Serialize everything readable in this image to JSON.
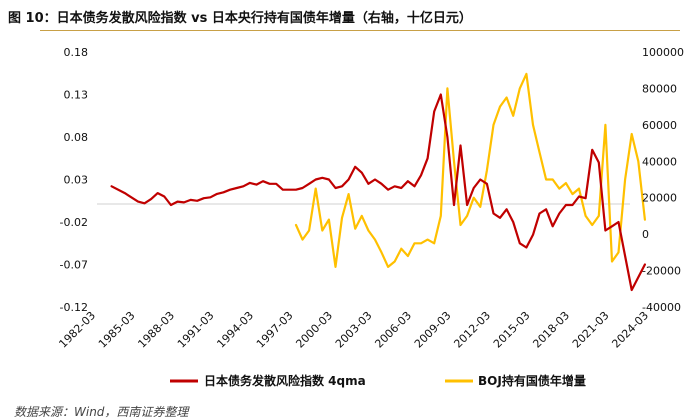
{
  "header": {
    "title": "图 10：日本债务发散风险指数 vs 日本央行持有国债年增量（右轴，十亿日元）",
    "source": "数据来源：Wind，西南证券整理"
  },
  "chart_data": {
    "type": "line",
    "title": "图 10：日本债务发散风险指数 vs 日本央行持有国债年增量（右轴，十亿日元）",
    "xlabel": "",
    "ylabel": "",
    "x_tick_labels": [
      "1982-03",
      "1985-03",
      "1988-03",
      "1991-03",
      "1994-03",
      "1997-03",
      "2000-03",
      "2003-03",
      "2006-03",
      "2009-03",
      "2012-03",
      "2015-03",
      "2018-03",
      "2021-03",
      "2024-03"
    ],
    "x_range": [
      1982.25,
      2025.5
    ],
    "ylim_left": [
      -0.12,
      0.18
    ],
    "yticks_left": [
      "0.18",
      "0.13",
      "0.08",
      "0.03",
      "-0.02",
      "-0.07",
      "-0.12"
    ],
    "ylim_right": [
      -40000,
      100000
    ],
    "yticks_right": [
      "100000",
      "80000",
      "60000",
      "40000",
      "20000",
      "0",
      "-20000",
      "-40000"
    ],
    "legend_position": "bottom",
    "grid": false,
    "colors": {
      "series1": "#c00000",
      "series2": "#ffc000",
      "rule": "#c8a046"
    },
    "series": [
      {
        "name": "日本债务发散风险指数 4qma",
        "axis": "left",
        "x": [
          1984.5,
          1985.5,
          1986.5,
          1987.0,
          1987.5,
          1988.0,
          1988.5,
          1989.0,
          1989.5,
          1990.0,
          1990.5,
          1991.0,
          1991.5,
          1992.0,
          1992.5,
          1993.0,
          1993.5,
          1994.0,
          1994.5,
          1995.0,
          1995.5,
          1996.0,
          1996.5,
          1997.0,
          1997.5,
          1998.0,
          1998.5,
          1999.0,
          1999.5,
          2000.0,
          2000.5,
          2001.0,
          2001.5,
          2002.0,
          2002.5,
          2003.0,
          2003.5,
          2004.0,
          2004.5,
          2005.0,
          2005.5,
          2006.0,
          2006.5,
          2007.0,
          2007.5,
          2008.0,
          2008.5,
          2009.0,
          2009.5,
          2010.0,
          2010.5,
          2011.0,
          2011.5,
          2012.0,
          2012.5,
          2013.0,
          2013.5,
          2014.0,
          2014.5,
          2015.0,
          2015.5,
          2016.0,
          2016.5,
          2017.0,
          2017.5,
          2018.0,
          2018.5,
          2019.0,
          2019.5,
          2020.0,
          2020.5,
          2021.0,
          2021.5,
          2022.0,
          2022.5,
          2023.0,
          2023.5,
          2024.0,
          2024.5,
          2025.0
        ],
        "values": [
          0.022,
          0.014,
          0.004,
          0.002,
          0.007,
          0.014,
          0.01,
          0.0,
          0.004,
          0.003,
          0.006,
          0.005,
          0.008,
          0.009,
          0.013,
          0.015,
          0.018,
          0.02,
          0.022,
          0.026,
          0.024,
          0.028,
          0.025,
          0.025,
          0.018,
          0.018,
          0.018,
          0.02,
          0.025,
          0.03,
          0.032,
          0.03,
          0.02,
          0.022,
          0.03,
          0.045,
          0.038,
          0.025,
          0.03,
          0.025,
          0.018,
          0.022,
          0.02,
          0.028,
          0.022,
          0.035,
          0.055,
          0.11,
          0.13,
          0.08,
          0.0,
          0.07,
          0.0,
          0.02,
          0.03,
          0.025,
          -0.01,
          -0.015,
          -0.005,
          -0.02,
          -0.045,
          -0.05,
          -0.035,
          -0.01,
          -0.005,
          -0.025,
          -0.01,
          0.0,
          0.0,
          0.01,
          0.008,
          0.065,
          0.05,
          -0.03,
          -0.025,
          -0.02,
          -0.06,
          -0.1,
          -0.085,
          -0.07
        ]
      },
      {
        "name": "BOJ持有国债年增量",
        "axis": "right",
        "x": [
          1998.5,
          1999.0,
          1999.5,
          2000.0,
          2000.5,
          2001.0,
          2001.5,
          2002.0,
          2002.5,
          2003.0,
          2003.5,
          2004.0,
          2004.5,
          2005.0,
          2005.5,
          2006.0,
          2006.5,
          2007.0,
          2007.5,
          2008.0,
          2008.5,
          2009.0,
          2009.5,
          2010.0,
          2010.5,
          2011.0,
          2011.5,
          2012.0,
          2012.5,
          2013.0,
          2013.5,
          2014.0,
          2014.5,
          2015.0,
          2015.5,
          2016.0,
          2016.5,
          2017.0,
          2017.5,
          2018.0,
          2018.5,
          2019.0,
          2019.5,
          2020.0,
          2020.5,
          2021.0,
          2021.5,
          2022.0,
          2022.5,
          2023.0,
          2023.5,
          2024.0,
          2024.5,
          2025.0
        ],
        "values": [
          5000,
          -3000,
          2000,
          25000,
          2000,
          8000,
          -18000,
          9000,
          22000,
          3000,
          10000,
          2000,
          -3000,
          -10000,
          -18000,
          -15000,
          -8000,
          -12000,
          -5000,
          -5000,
          -3000,
          -5000,
          10000,
          80000,
          40000,
          5000,
          10000,
          20000,
          15000,
          35000,
          60000,
          70000,
          75000,
          65000,
          80000,
          88000,
          60000,
          45000,
          30000,
          30000,
          25000,
          28000,
          22000,
          25000,
          10000,
          5000,
          10000,
          60000,
          -15000,
          -10000,
          30000,
          55000,
          40000,
          8000
        ]
      }
    ]
  }
}
